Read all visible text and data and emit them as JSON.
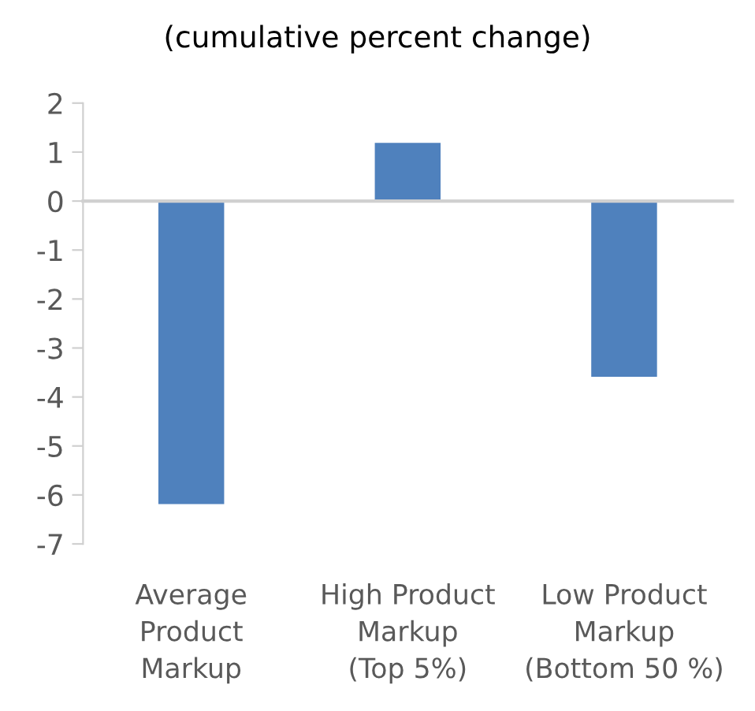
{
  "chart_data": {
    "type": "bar",
    "subtitle": "(cumulative percent change)",
    "categories": [
      "Average\nProduct\nMarkup",
      "High Product\nMarkup\n(Top 5%)",
      "Low Product\nMarkup\n(Bottom 50 %)"
    ],
    "values": [
      -6.2,
      1.2,
      -3.6
    ],
    "color": "#4f81bd",
    "ylim": [
      -7,
      2
    ],
    "yticks": [
      -7,
      -6,
      -5,
      -4,
      -3,
      -2,
      -1,
      0,
      1,
      2
    ],
    "legend": false
  }
}
